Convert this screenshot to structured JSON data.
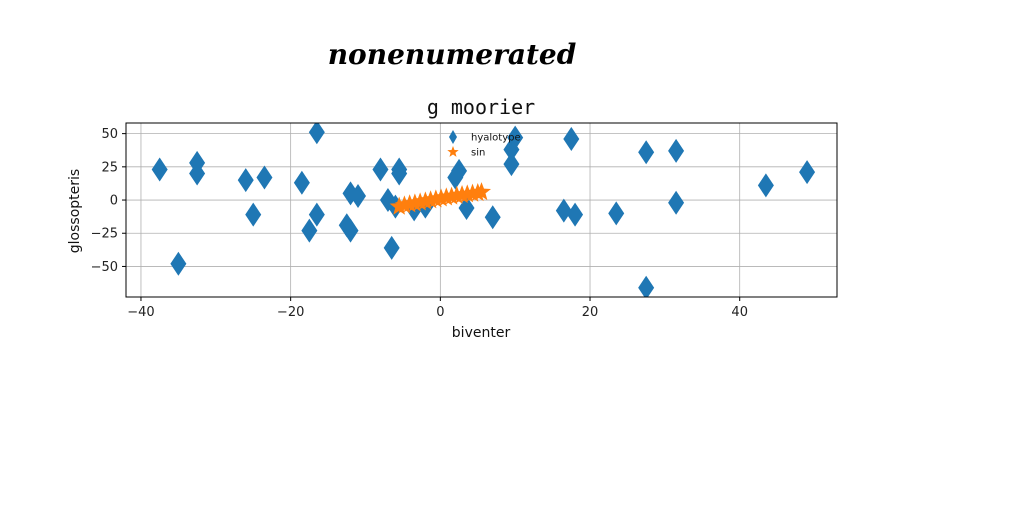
{
  "figure": {
    "suptitle": "nonenumerated"
  },
  "chart_data": {
    "type": "scatter",
    "title": "g moorier",
    "xlabel": "biventer",
    "ylabel": "glossopteris",
    "xlim": [
      -42,
      53
    ],
    "ylim": [
      -73,
      58
    ],
    "xticks": [
      -40,
      -20,
      0,
      20,
      40
    ],
    "xtick_labels": [
      "−40",
      "−20",
      "0",
      "20",
      "40"
    ],
    "yticks": [
      50,
      25,
      0,
      -25,
      -50
    ],
    "ytick_labels": [
      "50",
      "25",
      "0",
      "−25",
      "−50"
    ],
    "grid": true,
    "legend": "top-center",
    "series": [
      {
        "name": "hyalotype",
        "marker": "thin-diamond",
        "color": "#1f77b4",
        "points": [
          [
            -37.5,
            23
          ],
          [
            -35,
            -48
          ],
          [
            -32.5,
            28
          ],
          [
            -32.5,
            20
          ],
          [
            -26,
            15
          ],
          [
            -25,
            -11
          ],
          [
            -23.5,
            17
          ],
          [
            -18.5,
            13
          ],
          [
            -17.5,
            -23
          ],
          [
            -16.5,
            51
          ],
          [
            -16.5,
            -11
          ],
          [
            -12.5,
            -19
          ],
          [
            -12,
            -23
          ],
          [
            -12,
            5
          ],
          [
            -11,
            3
          ],
          [
            -8,
            23
          ],
          [
            -7,
            0
          ],
          [
            -6.5,
            -36
          ],
          [
            -6,
            -5
          ],
          [
            -5.5,
            20
          ],
          [
            -5.5,
            23
          ],
          [
            -3.5,
            -7
          ],
          [
            -2,
            -5
          ],
          [
            2,
            17
          ],
          [
            2.5,
            22
          ],
          [
            3.5,
            -6
          ],
          [
            7,
            -13
          ],
          [
            9.5,
            27
          ],
          [
            9.5,
            38
          ],
          [
            10,
            47
          ],
          [
            16.5,
            -8
          ],
          [
            17.5,
            46
          ],
          [
            18,
            -11
          ],
          [
            23.5,
            -10
          ],
          [
            27.5,
            36
          ],
          [
            27.5,
            -66
          ],
          [
            31.5,
            37
          ],
          [
            31.5,
            -2
          ],
          [
            43.5,
            11
          ],
          [
            49,
            21
          ]
        ]
      },
      {
        "name": "sin",
        "marker": "star",
        "color": "#ff7f0e",
        "points": [
          [
            -5.5,
            -5
          ],
          [
            -4.8,
            -4
          ],
          [
            -4.1,
            -3.2
          ],
          [
            -3.4,
            -2.5
          ],
          [
            -2.7,
            -1.8
          ],
          [
            -2.0,
            -1.0
          ],
          [
            -1.3,
            -0.2
          ],
          [
            -0.6,
            0.5
          ],
          [
            0.1,
            1.2
          ],
          [
            0.8,
            2.0
          ],
          [
            1.5,
            2.6
          ],
          [
            2.2,
            3.2
          ],
          [
            2.9,
            3.8
          ],
          [
            3.6,
            4.3
          ],
          [
            4.3,
            4.8
          ],
          [
            5.0,
            5.3
          ],
          [
            5.5,
            6.0
          ]
        ]
      }
    ]
  }
}
